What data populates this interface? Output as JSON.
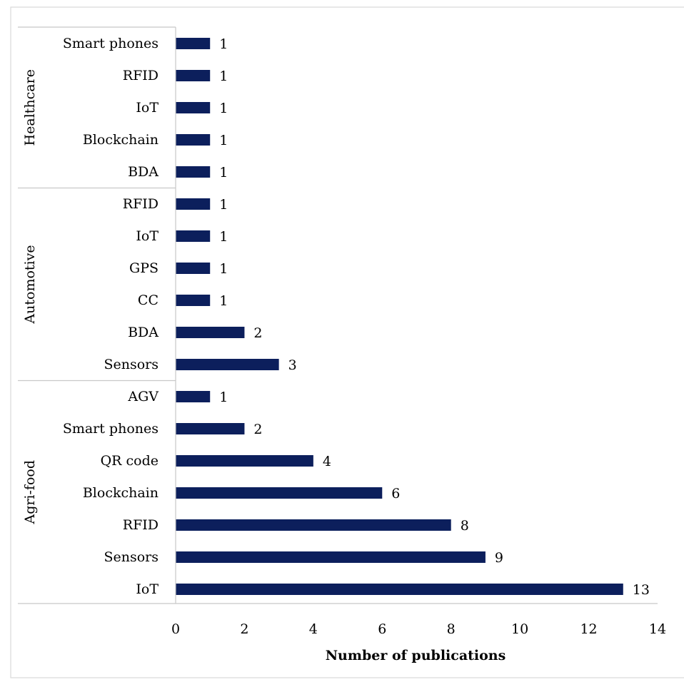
{
  "colors": {
    "bar": "#0c1f5c",
    "frame": "#d9d9d9",
    "separator": "#c8c8c8"
  },
  "chart_data": {
    "type": "bar",
    "orientation": "horizontal",
    "xlabel": "Number of publications",
    "xlim": [
      0,
      14
    ],
    "x_ticks": [
      0,
      2,
      4,
      6,
      8,
      10,
      12,
      14
    ],
    "grid": false,
    "data_labels": true,
    "groups": [
      {
        "name": "Healthcare",
        "categories": [
          "Smart phones",
          "RFID",
          "IoT",
          "Blockchain",
          "BDA"
        ],
        "values": [
          1,
          1,
          1,
          1,
          1
        ]
      },
      {
        "name": "Automotive",
        "categories": [
          "RFID",
          "IoT",
          "GPS",
          "CC",
          "BDA",
          "Sensors"
        ],
        "values": [
          1,
          1,
          1,
          1,
          2,
          3
        ]
      },
      {
        "name": "Agri-food",
        "categories": [
          "AGV",
          "Smart phones",
          "QR code",
          "Blockchain",
          "RFID",
          "Sensors",
          "IoT"
        ],
        "values": [
          1,
          2,
          4,
          6,
          8,
          9,
          13
        ]
      }
    ]
  }
}
